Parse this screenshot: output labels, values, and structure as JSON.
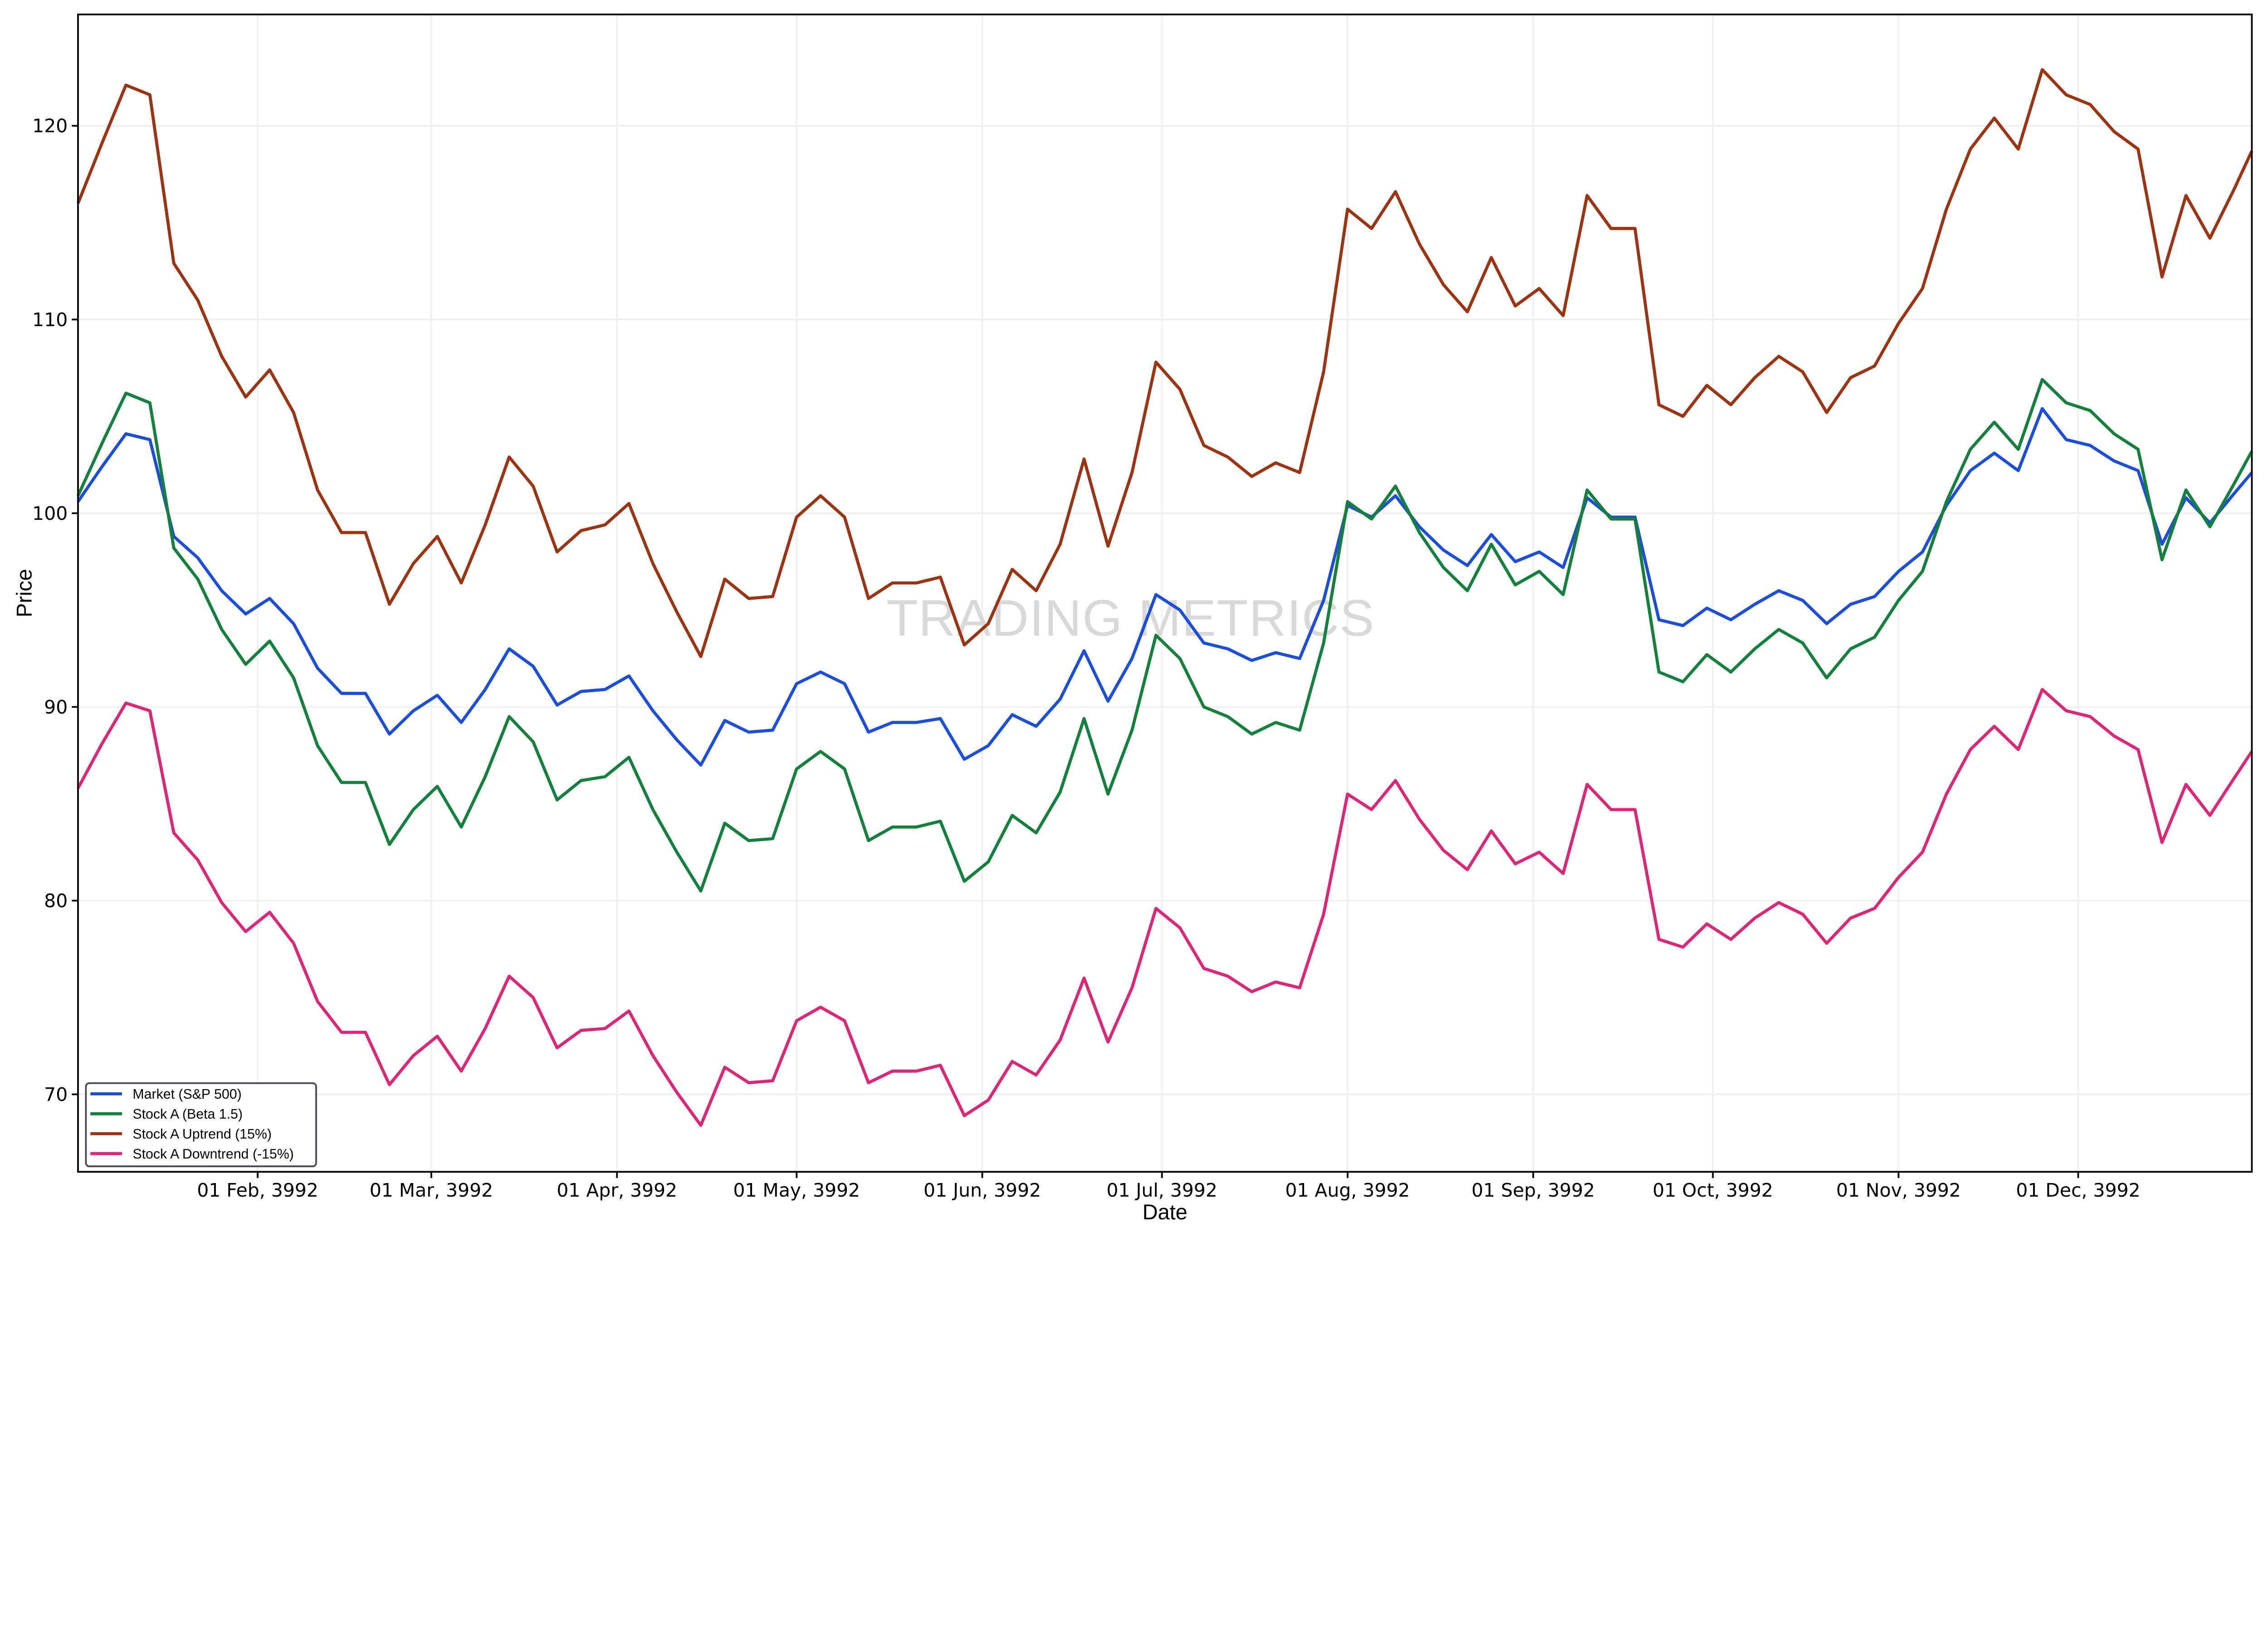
{
  "chart_data": {
    "type": "line",
    "xlabel": "Date",
    "ylabel": "Price",
    "ylim": [
      66,
      125.75
    ],
    "xlim": [
      "3992-01-02",
      "3992-12-30"
    ],
    "grid": true,
    "legend_position": "bottom-left",
    "watermark": "TRADING METRICS",
    "yticks": [
      70,
      80,
      90,
      100,
      110,
      120
    ],
    "xticks": [
      {
        "date": "3992-02-01",
        "label": "01 Feb, 3992"
      },
      {
        "date": "3992-03-01",
        "label": "01 Mar, 3992"
      },
      {
        "date": "3992-04-01",
        "label": "01 Apr, 3992"
      },
      {
        "date": "3992-05-01",
        "label": "01 May, 3992"
      },
      {
        "date": "3992-06-01",
        "label": "01 Jun, 3992"
      },
      {
        "date": "3992-07-01",
        "label": "01 Jul, 3992"
      },
      {
        "date": "3992-08-01",
        "label": "01 Aug, 3992"
      },
      {
        "date": "3992-09-01",
        "label": "01 Sep, 3992"
      },
      {
        "date": "3992-10-01",
        "label": "01 Oct, 3992"
      },
      {
        "date": "3992-11-01",
        "label": "01 Nov, 3992"
      },
      {
        "date": "3992-12-01",
        "label": "01 Dec, 3992"
      }
    ],
    "x": [
      "3992-01-02",
      "3992-01-06",
      "3992-01-10",
      "3992-01-14",
      "3992-01-18",
      "3992-01-22",
      "3992-01-26",
      "3992-01-30",
      "3992-02-03",
      "3992-02-07",
      "3992-02-11",
      "3992-02-15",
      "3992-02-19",
      "3992-02-23",
      "3992-02-27",
      "3992-03-02",
      "3992-03-06",
      "3992-03-10",
      "3992-03-14",
      "3992-03-18",
      "3992-03-22",
      "3992-03-26",
      "3992-03-30",
      "3992-04-03",
      "3992-04-07",
      "3992-04-11",
      "3992-04-15",
      "3992-04-19",
      "3992-04-23",
      "3992-04-27",
      "3992-05-01",
      "3992-05-05",
      "3992-05-09",
      "3992-05-13",
      "3992-05-17",
      "3992-05-21",
      "3992-05-25",
      "3992-05-29",
      "3992-06-02",
      "3992-06-06",
      "3992-06-10",
      "3992-06-14",
      "3992-06-18",
      "3992-06-22",
      "3992-06-26",
      "3992-06-30",
      "3992-07-04",
      "3992-07-08",
      "3992-07-12",
      "3992-07-16",
      "3992-07-20",
      "3992-07-24",
      "3992-07-28",
      "3992-08-01",
      "3992-08-05",
      "3992-08-09",
      "3992-08-13",
      "3992-08-17",
      "3992-08-21",
      "3992-08-25",
      "3992-08-29",
      "3992-09-02",
      "3992-09-06",
      "3992-09-10",
      "3992-09-14",
      "3992-09-18",
      "3992-09-22",
      "3992-09-26",
      "3992-09-30",
      "3992-10-04",
      "3992-10-08",
      "3992-10-12",
      "3992-10-16",
      "3992-10-20",
      "3992-10-24",
      "3992-10-28",
      "3992-11-01",
      "3992-11-05",
      "3992-11-09",
      "3992-11-13",
      "3992-11-17",
      "3992-11-21",
      "3992-11-25",
      "3992-11-29",
      "3992-12-03",
      "3992-12-07",
      "3992-12-11",
      "3992-12-15",
      "3992-12-19",
      "3992-12-23",
      "3992-12-27",
      "3992-12-30"
    ],
    "series": [
      {
        "name": "Market (S&P 500)",
        "color": "#1d4ed8",
        "values": [
          100.6,
          102.4,
          104.1,
          103.8,
          98.8,
          97.7,
          96.0,
          94.8,
          95.6,
          94.3,
          92.0,
          90.7,
          90.7,
          88.6,
          89.8,
          90.6,
          89.2,
          90.9,
          93.0,
          92.1,
          90.1,
          90.8,
          90.9,
          91.6,
          89.8,
          88.3,
          87.0,
          89.3,
          88.7,
          88.8,
          91.2,
          91.8,
          91.2,
          88.7,
          89.2,
          89.2,
          89.4,
          87.3,
          88.0,
          89.6,
          89.0,
          90.4,
          92.9,
          90.3,
          92.5,
          95.8,
          95.0,
          93.3,
          93.0,
          92.4,
          92.8,
          92.5,
          95.5,
          100.4,
          99.8,
          100.9,
          99.3,
          98.1,
          97.3,
          98.9,
          97.5,
          98.0,
          97.2,
          100.8,
          99.8,
          99.8,
          94.5,
          94.2,
          95.1,
          94.5,
          95.3,
          96.0,
          95.5,
          94.3,
          95.3,
          95.7,
          97.0,
          98.0,
          100.4,
          102.2,
          103.1,
          102.2,
          105.4,
          103.8,
          103.5,
          102.7,
          102.2,
          98.4,
          100.8,
          99.5,
          101.0,
          102.1
        ]
      },
      {
        "name": "Stock A (Beta 1.5)",
        "color": "#15803d",
        "values": [
          100.9,
          103.6,
          106.2,
          105.7,
          98.2,
          96.6,
          94.0,
          92.2,
          93.4,
          91.5,
          88.0,
          86.1,
          86.1,
          82.9,
          84.7,
          85.9,
          83.8,
          86.4,
          89.5,
          88.2,
          85.2,
          86.2,
          86.4,
          87.4,
          84.7,
          82.5,
          80.5,
          84.0,
          83.1,
          83.2,
          86.8,
          87.7,
          86.8,
          83.1,
          83.8,
          83.8,
          84.1,
          81.0,
          82.0,
          84.4,
          83.5,
          85.6,
          89.4,
          85.5,
          88.8,
          93.7,
          92.5,
          90.0,
          89.5,
          88.6,
          89.2,
          88.8,
          93.3,
          100.6,
          99.7,
          101.4,
          99.0,
          97.2,
          96.0,
          98.4,
          96.3,
          97.0,
          95.8,
          101.2,
          99.7,
          99.7,
          91.8,
          91.3,
          92.7,
          91.8,
          93.0,
          94.0,
          93.3,
          91.5,
          93.0,
          93.6,
          95.5,
          97.0,
          100.6,
          103.3,
          104.7,
          103.3,
          106.9,
          105.7,
          105.3,
          104.1,
          103.3,
          97.6,
          101.2,
          99.3,
          101.5,
          103.2
        ]
      },
      {
        "name": "Stock A Uptrend (15%)",
        "color": "#9a3412",
        "values": [
          116.0,
          119.1,
          122.1,
          121.6,
          112.9,
          111.0,
          108.1,
          106.0,
          107.4,
          105.2,
          101.2,
          99.0,
          99.0,
          95.3,
          97.4,
          98.8,
          96.4,
          99.4,
          102.9,
          101.4,
          98.0,
          99.1,
          99.4,
          100.5,
          97.4,
          94.9,
          92.6,
          96.6,
          95.6,
          95.7,
          99.8,
          100.9,
          99.8,
          95.6,
          96.4,
          96.4,
          96.7,
          93.2,
          94.3,
          97.1,
          96.0,
          98.4,
          102.8,
          98.3,
          102.1,
          107.8,
          106.4,
          103.5,
          102.9,
          101.9,
          102.6,
          102.1,
          107.3,
          115.7,
          114.7,
          116.6,
          113.9,
          111.8,
          110.4,
          113.2,
          110.7,
          111.6,
          110.2,
          116.4,
          114.7,
          114.7,
          105.6,
          105.0,
          106.6,
          105.6,
          107.0,
          108.1,
          107.3,
          105.2,
          107.0,
          107.6,
          109.8,
          111.6,
          115.7,
          118.8,
          120.4,
          118.8,
          122.9,
          121.6,
          121.1,
          119.7,
          118.8,
          112.2,
          116.4,
          114.2,
          116.7,
          118.7
        ]
      },
      {
        "name": "Stock A Downtrend (-15%)",
        "color": "#db2777",
        "values": [
          85.8,
          88.1,
          90.2,
          89.8,
          83.5,
          82.1,
          79.9,
          78.4,
          79.4,
          77.8,
          74.8,
          73.2,
          73.2,
          70.5,
          72.0,
          73.0,
          71.2,
          73.4,
          76.1,
          75.0,
          72.4,
          73.3,
          73.4,
          74.3,
          72.0,
          70.1,
          68.4,
          71.4,
          70.6,
          70.7,
          73.8,
          74.5,
          73.8,
          70.6,
          71.2,
          71.2,
          71.5,
          68.9,
          69.7,
          71.7,
          71.0,
          72.8,
          76.0,
          72.7,
          75.5,
          79.6,
          78.6,
          76.5,
          76.1,
          75.3,
          75.8,
          75.5,
          79.3,
          85.5,
          84.7,
          86.2,
          84.2,
          82.6,
          81.6,
          83.6,
          81.9,
          82.5,
          81.4,
          86.0,
          84.7,
          84.7,
          78.0,
          77.6,
          78.8,
          78.0,
          79.1,
          79.9,
          79.3,
          77.8,
          79.1,
          79.6,
          81.2,
          82.5,
          85.5,
          87.8,
          89.0,
          87.8,
          90.9,
          89.8,
          89.5,
          88.5,
          87.8,
          83.0,
          86.0,
          84.4,
          86.3,
          87.7
        ]
      }
    ]
  }
}
